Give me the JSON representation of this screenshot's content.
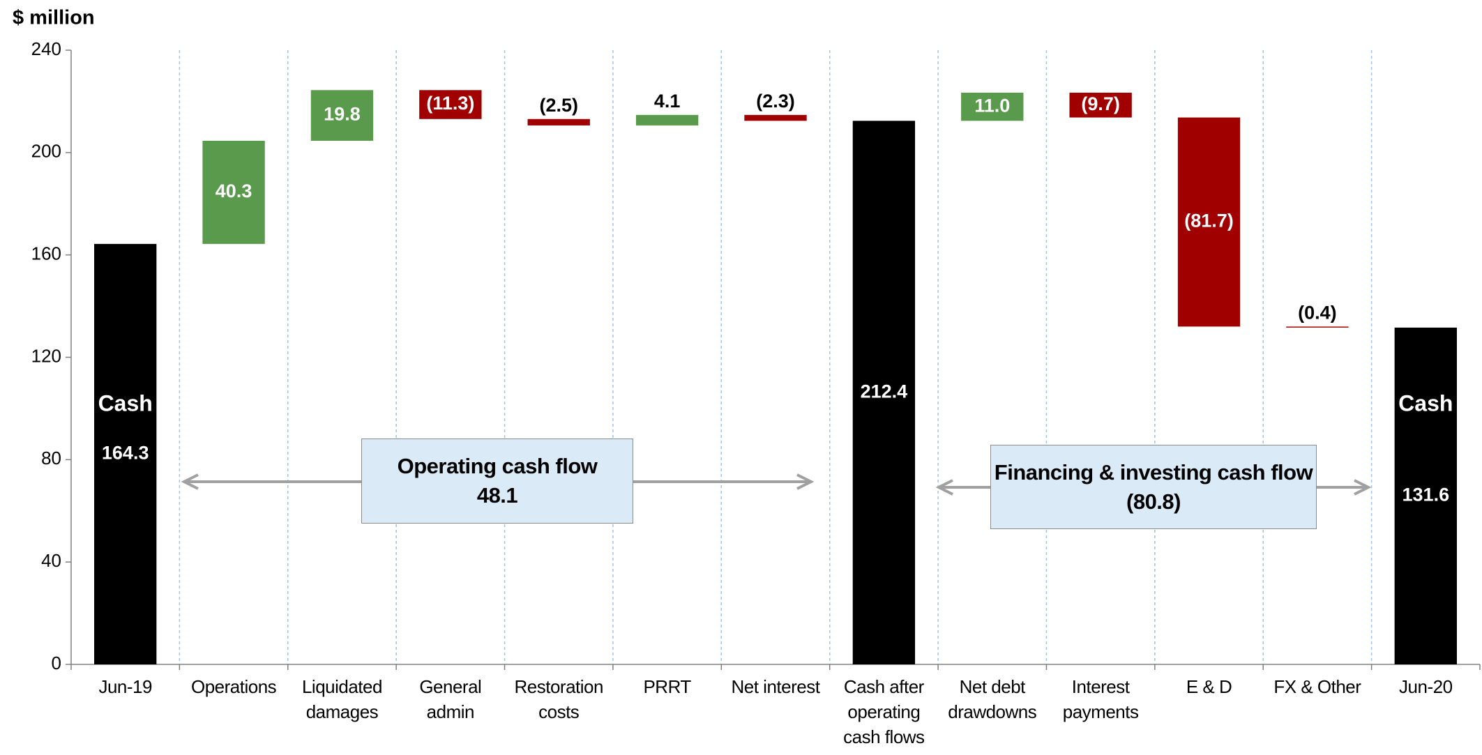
{
  "chart_data": {
    "type": "waterfall",
    "title": "$ million",
    "categories": [
      "Jun-19",
      "Operations",
      "Liquidated damages",
      "General admin",
      "Restoration costs",
      "PRRT",
      "Net interest",
      "Cash after operating cash flows",
      "Net debt drawdowns",
      "Interest payments",
      "E & D",
      "FX & Other",
      "Jun-20"
    ],
    "values": [
      164.3,
      40.3,
      19.8,
      -11.3,
      -2.5,
      4.1,
      -2.3,
      212.4,
      11.0,
      -9.7,
      -81.7,
      -0.4,
      131.6
    ],
    "value_labels": [
      "164.3",
      "40.3",
      "19.8",
      "(11.3)",
      "(2.5)",
      "4.1",
      "(2.3)",
      "212.4",
      "11.0",
      "(9.7)",
      "(81.7)",
      "(0.4)",
      "131.6"
    ],
    "is_total": [
      true,
      false,
      false,
      false,
      false,
      false,
      false,
      true,
      false,
      false,
      false,
      false,
      true
    ],
    "bar_captions": [
      "Cash",
      null,
      null,
      null,
      null,
      null,
      null,
      null,
      null,
      null,
      null,
      null,
      "Cash"
    ],
    "colors": {
      "total": "#000000",
      "increase": "#5a9a4c",
      "decrease": "#a00000"
    },
    "brackets": [
      {
        "label": "Operating cash flow",
        "value": 48.1,
        "value_label": "48.1"
      },
      {
        "label": "Financing & investing cash flow",
        "value": -80.8,
        "value_label": "(80.8)"
      }
    ],
    "ylim": [
      0,
      240
    ],
    "yticks": [
      0,
      40,
      80,
      120,
      160,
      200,
      240
    ],
    "grid": true
  }
}
